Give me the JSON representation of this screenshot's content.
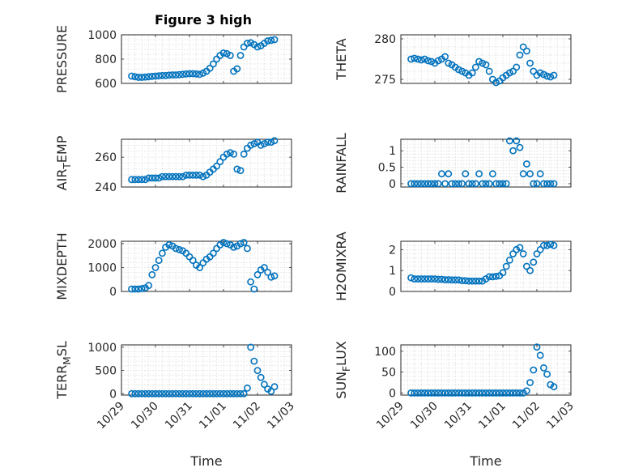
{
  "figure": {
    "title": "Figure 3 high",
    "marker_color": "#0072bd"
  },
  "chart_data": [
    {
      "type": "scatter",
      "title": "Figure 3 high",
      "ylabel": "PRESSURE",
      "xlabel": "",
      "ylim": [
        600,
        1000
      ],
      "yticks": [
        600,
        800,
        1000
      ],
      "ytick_labels": [
        "600",
        "800",
        "1000"
      ],
      "xlim": [
        0,
        5
      ],
      "xticks": [
        0,
        1,
        2,
        3,
        4,
        5
      ],
      "xtick_labels": [],
      "grid": true,
      "x": [
        0.3,
        0.4,
        0.5,
        0.6,
        0.7,
        0.8,
        0.9,
        1.0,
        1.1,
        1.2,
        1.3,
        1.4,
        1.5,
        1.6,
        1.7,
        1.8,
        1.9,
        2.0,
        2.1,
        2.2,
        2.3,
        2.4,
        2.5,
        2.6,
        2.7,
        2.8,
        2.9,
        3.0,
        3.1,
        3.2,
        3.3,
        3.4,
        3.5,
        3.6,
        3.7,
        3.8,
        3.9,
        4.0,
        4.1,
        4.2,
        4.3,
        4.4,
        4.5
      ],
      "y": [
        660,
        655,
        650,
        650,
        652,
        655,
        658,
        660,
        662,
        665,
        665,
        668,
        670,
        670,
        672,
        675,
        678,
        680,
        680,
        678,
        675,
        685,
        700,
        725,
        760,
        800,
        830,
        850,
        845,
        830,
        700,
        720,
        830,
        900,
        930,
        935,
        920,
        900,
        910,
        930,
        950,
        955,
        960
      ]
    },
    {
      "type": "scatter",
      "title": "",
      "ylabel": "THETA",
      "xlabel": "",
      "ylim": [
        274.5,
        280.5
      ],
      "yticks": [
        275,
        280
      ],
      "ytick_labels": [
        "275",
        "280"
      ],
      "xlim": [
        0,
        5
      ],
      "xticks": [
        0,
        1,
        2,
        3,
        4,
        5
      ],
      "xtick_labels": [],
      "grid": true,
      "x": [
        0.3,
        0.4,
        0.5,
        0.6,
        0.7,
        0.8,
        0.9,
        1.0,
        1.1,
        1.2,
        1.3,
        1.4,
        1.5,
        1.6,
        1.7,
        1.8,
        1.9,
        2.0,
        2.1,
        2.2,
        2.3,
        2.4,
        2.5,
        2.6,
        2.7,
        2.8,
        2.9,
        3.0,
        3.1,
        3.2,
        3.3,
        3.4,
        3.5,
        3.6,
        3.7,
        3.8,
        3.9,
        4.0,
        4.1,
        4.2,
        4.3,
        4.4,
        4.5
      ],
      "y": [
        277.5,
        277.6,
        277.5,
        277.4,
        277.5,
        277.3,
        277.2,
        277.0,
        277.3,
        277.5,
        277.8,
        277.0,
        276.8,
        276.5,
        276.2,
        276.0,
        275.8,
        275.5,
        275.8,
        276.5,
        277.2,
        277.0,
        276.8,
        276.0,
        275.0,
        274.6,
        274.8,
        275.2,
        275.5,
        275.8,
        276.0,
        276.5,
        278.0,
        279.0,
        278.5,
        277.0,
        276.0,
        275.5,
        275.8,
        275.6,
        275.4,
        275.3,
        275.5
      ]
    },
    {
      "type": "scatter",
      "title": "",
      "ylabel": "AIR_TEMP",
      "xlabel": "",
      "ylabel_parts": [
        "AIR",
        "T",
        "EMP"
      ],
      "ylim": [
        240,
        272
      ],
      "yticks": [
        240,
        260
      ],
      "ytick_labels": [
        "240",
        "260"
      ],
      "xlim": [
        0,
        5
      ],
      "xticks": [
        0,
        1,
        2,
        3,
        4,
        5
      ],
      "xtick_labels": [],
      "grid": true,
      "x": [
        0.3,
        0.4,
        0.5,
        0.6,
        0.7,
        0.8,
        0.9,
        1.0,
        1.1,
        1.2,
        1.3,
        1.4,
        1.5,
        1.6,
        1.7,
        1.8,
        1.9,
        2.0,
        2.1,
        2.2,
        2.3,
        2.4,
        2.5,
        2.6,
        2.7,
        2.8,
        2.9,
        3.0,
        3.1,
        3.2,
        3.3,
        3.4,
        3.5,
        3.6,
        3.7,
        3.8,
        3.9,
        4.0,
        4.1,
        4.2,
        4.3,
        4.4,
        4.5
      ],
      "y": [
        245,
        245,
        245,
        245,
        245,
        246,
        246,
        246,
        246,
        247,
        247,
        247,
        247,
        247,
        247,
        247,
        248,
        248,
        248,
        248,
        248,
        247,
        248,
        250,
        252,
        254,
        257,
        260,
        262,
        263,
        262,
        252,
        251,
        262,
        266,
        268,
        269,
        270,
        268,
        269,
        270,
        270,
        271
      ]
    },
    {
      "type": "scatter",
      "title": "",
      "ylabel": "RAINFALL",
      "xlabel": "",
      "ylim": [
        -0.1,
        1.35
      ],
      "yticks": [
        0,
        0.5,
        1
      ],
      "ytick_labels": [
        "0",
        "0.5",
        "1"
      ],
      "xlim": [
        0,
        5
      ],
      "xticks": [
        0,
        1,
        2,
        3,
        4,
        5
      ],
      "xtick_labels": [],
      "grid": true,
      "x": [
        0.3,
        0.4,
        0.5,
        0.6,
        0.7,
        0.8,
        0.9,
        1.0,
        1.1,
        1.2,
        1.3,
        1.4,
        1.5,
        1.6,
        1.7,
        1.8,
        1.9,
        2.0,
        2.1,
        2.2,
        2.3,
        2.4,
        2.5,
        2.6,
        2.7,
        2.8,
        2.9,
        3.0,
        3.1,
        3.2,
        3.3,
        3.4,
        3.5,
        3.6,
        3.7,
        3.8,
        3.9,
        4.0,
        4.1,
        4.2,
        4.3,
        4.4,
        4.5
      ],
      "y": [
        0,
        0,
        0,
        0,
        0,
        0,
        0,
        0,
        0,
        0.3,
        0,
        0.3,
        0,
        0,
        0,
        0,
        0.3,
        0,
        0,
        0,
        0.3,
        0,
        0,
        0,
        0.3,
        0,
        0,
        0,
        0,
        1.3,
        1.0,
        1.3,
        1.1,
        0.3,
        0.6,
        0.3,
        0,
        0,
        0.3,
        0,
        0,
        0,
        0
      ]
    },
    {
      "type": "scatter",
      "title": "",
      "ylabel": "MIXDEPTH",
      "xlabel": "",
      "ylim": [
        0,
        2100
      ],
      "yticks": [
        0,
        1000,
        2000
      ],
      "ytick_labels": [
        "0",
        "1000",
        "2000"
      ],
      "xlim": [
        0,
        5
      ],
      "xticks": [
        0,
        1,
        2,
        3,
        4,
        5
      ],
      "xtick_labels": [],
      "grid": true,
      "x": [
        0.3,
        0.4,
        0.5,
        0.6,
        0.7,
        0.8,
        0.9,
        1.0,
        1.1,
        1.2,
        1.3,
        1.4,
        1.5,
        1.6,
        1.7,
        1.8,
        1.9,
        2.0,
        2.1,
        2.2,
        2.3,
        2.4,
        2.5,
        2.6,
        2.7,
        2.8,
        2.9,
        3.0,
        3.1,
        3.2,
        3.3,
        3.4,
        3.5,
        3.6,
        3.7,
        3.8,
        3.9,
        4.0,
        4.1,
        4.2,
        4.3,
        4.4,
        4.5
      ],
      "y": [
        100,
        100,
        100,
        120,
        150,
        250,
        700,
        1000,
        1300,
        1600,
        1850,
        1950,
        1900,
        1800,
        1750,
        1700,
        1600,
        1450,
        1300,
        1100,
        1000,
        1200,
        1350,
        1450,
        1600,
        1800,
        1950,
        2050,
        2000,
        1950,
        1850,
        1900,
        2000,
        2050,
        1800,
        400,
        100,
        700,
        900,
        1000,
        800,
        600,
        650
      ]
    },
    {
      "type": "scatter",
      "title": "",
      "ylabel": "H2OMIXRA",
      "xlabel": "",
      "ylim": [
        0,
        2.4
      ],
      "yticks": [
        0,
        1,
        2
      ],
      "ytick_labels": [
        "0",
        "1",
        "2"
      ],
      "xlim": [
        0,
        5
      ],
      "xticks": [
        0,
        1,
        2,
        3,
        4,
        5
      ],
      "xtick_labels": [],
      "grid": true,
      "x": [
        0.3,
        0.4,
        0.5,
        0.6,
        0.7,
        0.8,
        0.9,
        1.0,
        1.1,
        1.2,
        1.3,
        1.4,
        1.5,
        1.6,
        1.7,
        1.8,
        1.9,
        2.0,
        2.1,
        2.2,
        2.3,
        2.4,
        2.5,
        2.6,
        2.7,
        2.8,
        2.9,
        3.0,
        3.1,
        3.2,
        3.3,
        3.4,
        3.5,
        3.6,
        3.7,
        3.8,
        3.9,
        4.0,
        4.1,
        4.2,
        4.3,
        4.4,
        4.5
      ],
      "y": [
        0.65,
        0.6,
        0.6,
        0.6,
        0.6,
        0.6,
        0.6,
        0.6,
        0.58,
        0.58,
        0.56,
        0.56,
        0.55,
        0.55,
        0.55,
        0.52,
        0.52,
        0.5,
        0.5,
        0.5,
        0.5,
        0.5,
        0.6,
        0.7,
        0.7,
        0.72,
        0.75,
        0.9,
        1.2,
        1.5,
        1.8,
        2.0,
        2.1,
        1.8,
        1.2,
        1.0,
        1.4,
        1.8,
        2.0,
        2.2,
        2.2,
        2.25,
        2.2
      ]
    },
    {
      "type": "scatter",
      "title": "",
      "ylabel": "TERR_MSL",
      "xlabel": "Time",
      "ylabel_parts": [
        "TERR",
        "M",
        "SL"
      ],
      "ylim": [
        -30,
        1050
      ],
      "yticks": [
        0,
        500,
        1000
      ],
      "ytick_labels": [
        "0",
        "500",
        "1000"
      ],
      "xlim": [
        0,
        5
      ],
      "xticks": [
        0,
        1,
        2,
        3,
        4,
        5
      ],
      "xtick_labels": [
        "10/29",
        "10/30",
        "10/31",
        "11/01",
        "11/02",
        "11/03"
      ],
      "grid": true,
      "x": [
        0.3,
        0.4,
        0.5,
        0.6,
        0.7,
        0.8,
        0.9,
        1.0,
        1.1,
        1.2,
        1.3,
        1.4,
        1.5,
        1.6,
        1.7,
        1.8,
        1.9,
        2.0,
        2.1,
        2.2,
        2.3,
        2.4,
        2.5,
        2.6,
        2.7,
        2.8,
        2.9,
        3.0,
        3.1,
        3.2,
        3.3,
        3.4,
        3.5,
        3.6,
        3.7,
        3.8,
        3.9,
        4.0,
        4.1,
        4.2,
        4.3,
        4.4,
        4.5
      ],
      "y": [
        0,
        0,
        0,
        0,
        0,
        0,
        0,
        0,
        0,
        0,
        0,
        0,
        0,
        0,
        0,
        0,
        0,
        0,
        0,
        0,
        0,
        0,
        0,
        0,
        0,
        0,
        0,
        0,
        0,
        0,
        0,
        0,
        0,
        0,
        120,
        1000,
        700,
        500,
        350,
        200,
        100,
        50,
        150
      ]
    },
    {
      "type": "scatter",
      "title": "",
      "ylabel": "SUN_FLUX",
      "xlabel": "Time",
      "ylabel_parts": [
        "SUN",
        "F",
        "LUX"
      ],
      "ylim": [
        -5,
        115
      ],
      "yticks": [
        0,
        50,
        100
      ],
      "ytick_labels": [
        "0",
        "50",
        "100"
      ],
      "xlim": [
        0,
        5
      ],
      "xticks": [
        0,
        1,
        2,
        3,
        4,
        5
      ],
      "xtick_labels": [
        "10/29",
        "10/30",
        "10/31",
        "11/01",
        "11/02",
        "11/03"
      ],
      "grid": true,
      "x": [
        0.3,
        0.4,
        0.5,
        0.6,
        0.7,
        0.8,
        0.9,
        1.0,
        1.1,
        1.2,
        1.3,
        1.4,
        1.5,
        1.6,
        1.7,
        1.8,
        1.9,
        2.0,
        2.1,
        2.2,
        2.3,
        2.4,
        2.5,
        2.6,
        2.7,
        2.8,
        2.9,
        3.0,
        3.1,
        3.2,
        3.3,
        3.4,
        3.5,
        3.6,
        3.7,
        3.8,
        3.9,
        4.0,
        4.1,
        4.2,
        4.3,
        4.4,
        4.5
      ],
      "y": [
        0,
        0,
        0,
        0,
        0,
        0,
        0,
        0,
        0,
        0,
        0,
        0,
        0,
        0,
        0,
        0,
        0,
        0,
        0,
        0,
        0,
        0,
        0,
        0,
        0,
        0,
        0,
        0,
        0,
        0,
        0,
        0,
        0,
        0,
        5,
        25,
        55,
        110,
        90,
        60,
        45,
        20,
        15
      ]
    }
  ]
}
